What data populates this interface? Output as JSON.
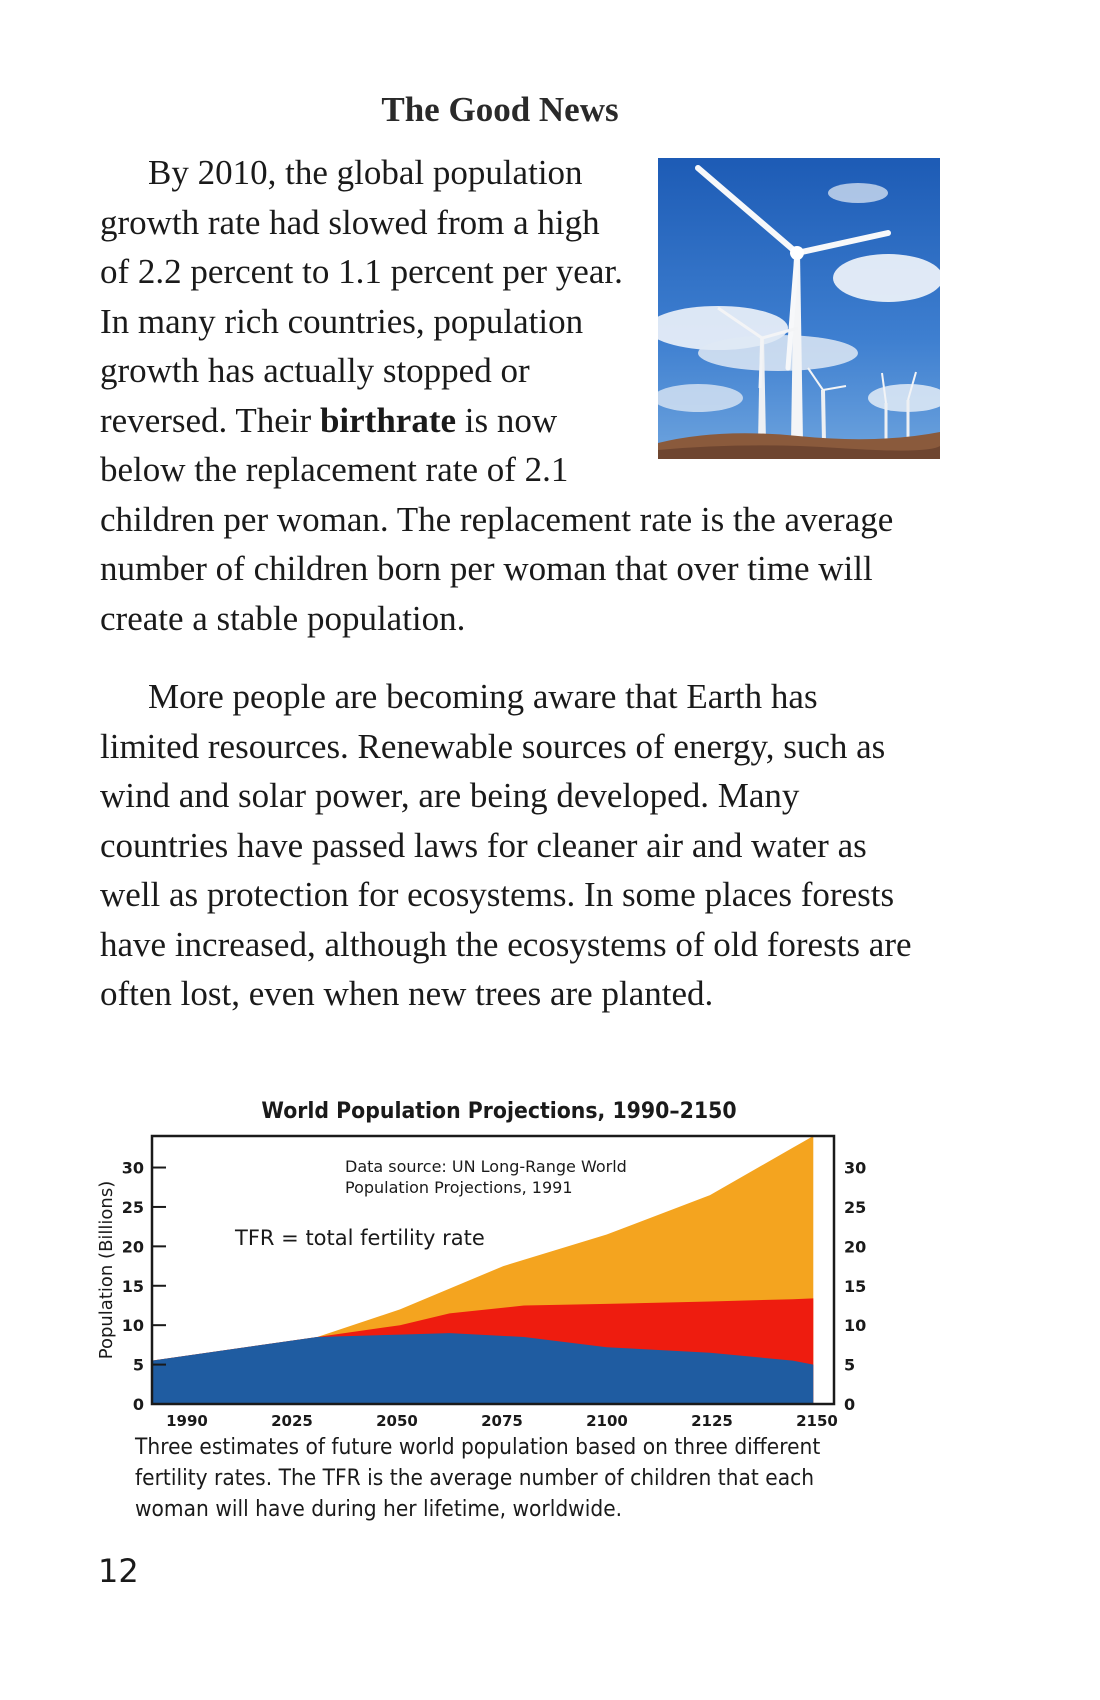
{
  "heading": "The Good News",
  "paragraph1": {
    "before_bold": "By 2010, the global population growth rate had slowed from a high of 2.2 percent to 1.1 percent per year. In many rich countries, population growth has actually stopped or reversed. Their ",
    "bold": "birthrate",
    "after_bold": " is now below the replacement rate of 2.1 children per woman. The replacement rate is the average number of children born per woman that over time will create a stable population."
  },
  "paragraph2": "More people are becoming aware that Earth has limited resources. Renewable sources of energy, such as wind and solar power, are being developed. Many countries have passed laws for cleaner air and water as well as protection for ecosystems. In some places forests have increased, although the ecosystems of old forests are often lost, even when new trees are planted.",
  "photo": {
    "icon": "wind-turbines-photo",
    "sky_color": "#2f6fc4",
    "ground_color": "#8a5a3c"
  },
  "caption": "Three estimates of future world population based on three different fertility rates. The TFR is the average number of children that each woman will have during her lifetime, worldwide.",
  "page_number": "12",
  "chart_data": {
    "type": "area",
    "title": "World Population Projections, 1990–2150",
    "ylabel": "Population (Billions)",
    "xlabel": "",
    "x_ticks": [
      "1990",
      "2025",
      "2050",
      "2075",
      "2100",
      "2125",
      "2150"
    ],
    "y_ticks": [
      0,
      5,
      10,
      15,
      20,
      25,
      30
    ],
    "ylim": [
      0,
      34
    ],
    "grid": false,
    "source_note": [
      "Data source: UN Long-Range World",
      "Population Projections, 1991"
    ],
    "annotation": "TFR = total fertility rate",
    "series": [
      {
        "color": "#f4a41f",
        "values": [
          5.5,
          8.5,
          12,
          17.5,
          21.5,
          26.5,
          32.5,
          34
        ]
      },
      {
        "color": "#ee1c0f",
        "values": [
          5.5,
          8.5,
          10,
          11.5,
          12.5,
          12.7,
          13,
          13.3,
          13.4
        ]
      },
      {
        "color": "#1f5ca1",
        "values": [
          5.5,
          8.5,
          8.8,
          9,
          8.5,
          7.2,
          6.5,
          5.5,
          5
        ]
      }
    ],
    "series_x": [
      [
        1990,
        2030,
        2050,
        2075,
        2100,
        2125,
        2145,
        2150
      ],
      [
        1990,
        2030,
        2050,
        2062,
        2080,
        2100,
        2125,
        2145,
        2150
      ],
      [
        1990,
        2030,
        2050,
        2062,
        2080,
        2100,
        2125,
        2145,
        2150
      ]
    ]
  }
}
